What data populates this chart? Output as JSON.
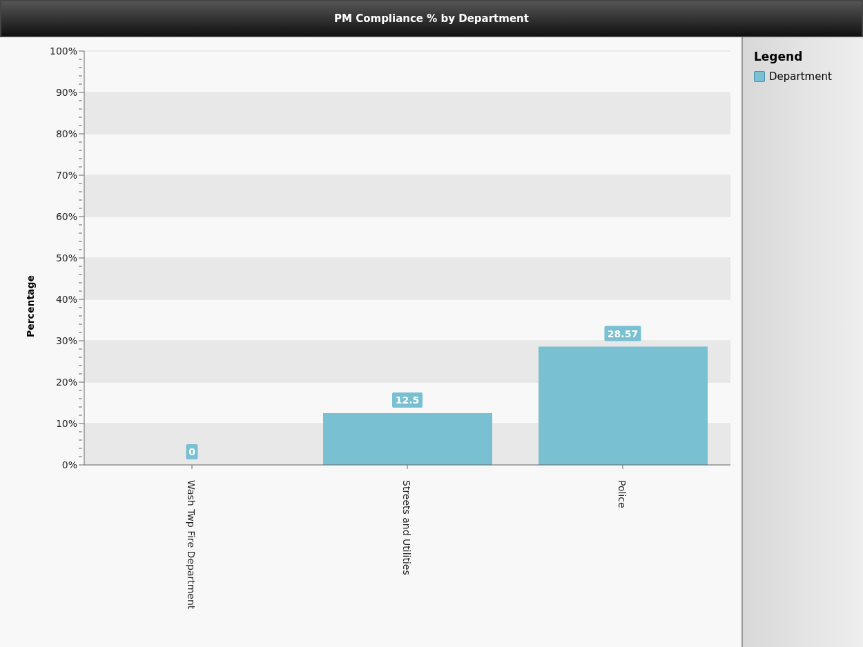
{
  "chart_data": {
    "type": "bar",
    "title": "PM Compliance % by Department",
    "ylabel": "Percentage",
    "legend_title": "Legend",
    "legend": "right",
    "grid": "y",
    "data_labels": true,
    "categories": [
      "Wash Twp Fire Department",
      "Streets and Utilities",
      "Police"
    ],
    "series": [
      {
        "name": "Department",
        "color": "#78c0d2",
        "values": [
          0,
          12.5,
          28.57
        ]
      }
    ],
    "ylim": [
      0,
      100
    ],
    "yticks": [
      {
        "value": 0,
        "label": "0%"
      },
      {
        "value": 2,
        "label": null
      },
      {
        "value": 4,
        "label": null
      },
      {
        "value": 6,
        "label": null
      },
      {
        "value": 8,
        "label": null
      },
      {
        "value": 10,
        "label": "10%"
      },
      {
        "value": 12,
        "label": null
      },
      {
        "value": 14,
        "label": null
      },
      {
        "value": 16,
        "label": null
      },
      {
        "value": 18,
        "label": null
      },
      {
        "value": 20,
        "label": "20%"
      },
      {
        "value": 22,
        "label": null
      },
      {
        "value": 24,
        "label": null
      },
      {
        "value": 26,
        "label": null
      },
      {
        "value": 28,
        "label": null
      },
      {
        "value": 30,
        "label": "30%"
      },
      {
        "value": 32,
        "label": null
      },
      {
        "value": 34,
        "label": null
      },
      {
        "value": 36,
        "label": null
      },
      {
        "value": 38,
        "label": null
      },
      {
        "value": 40,
        "label": "40%"
      },
      {
        "value": 42,
        "label": null
      },
      {
        "value": 44,
        "label": null
      },
      {
        "value": 46,
        "label": null
      },
      {
        "value": 48,
        "label": null
      },
      {
        "value": 50,
        "label": "50%"
      },
      {
        "value": 52,
        "label": null
      },
      {
        "value": 54,
        "label": null
      },
      {
        "value": 56,
        "label": null
      },
      {
        "value": 58,
        "label": null
      },
      {
        "value": 60,
        "label": "60%"
      },
      {
        "value": 62,
        "label": null
      },
      {
        "value": 64,
        "label": null
      },
      {
        "value": 66,
        "label": null
      },
      {
        "value": 68,
        "label": null
      },
      {
        "value": 70,
        "label": "70%"
      },
      {
        "value": 72,
        "label": null
      },
      {
        "value": 74,
        "label": null
      },
      {
        "value": 76,
        "label": null
      },
      {
        "value": 78,
        "label": null
      },
      {
        "value": 80,
        "label": "80%"
      },
      {
        "value": 82,
        "label": null
      },
      {
        "value": 84,
        "label": null
      },
      {
        "value": 86,
        "label": null
      },
      {
        "value": 88,
        "label": null
      },
      {
        "value": 90,
        "label": "90%"
      },
      {
        "value": 92,
        "label": null
      },
      {
        "value": 94,
        "label": null
      },
      {
        "value": 96,
        "label": null
      },
      {
        "value": 98,
        "label": null
      },
      {
        "value": 100,
        "label": "100%"
      }
    ]
  }
}
